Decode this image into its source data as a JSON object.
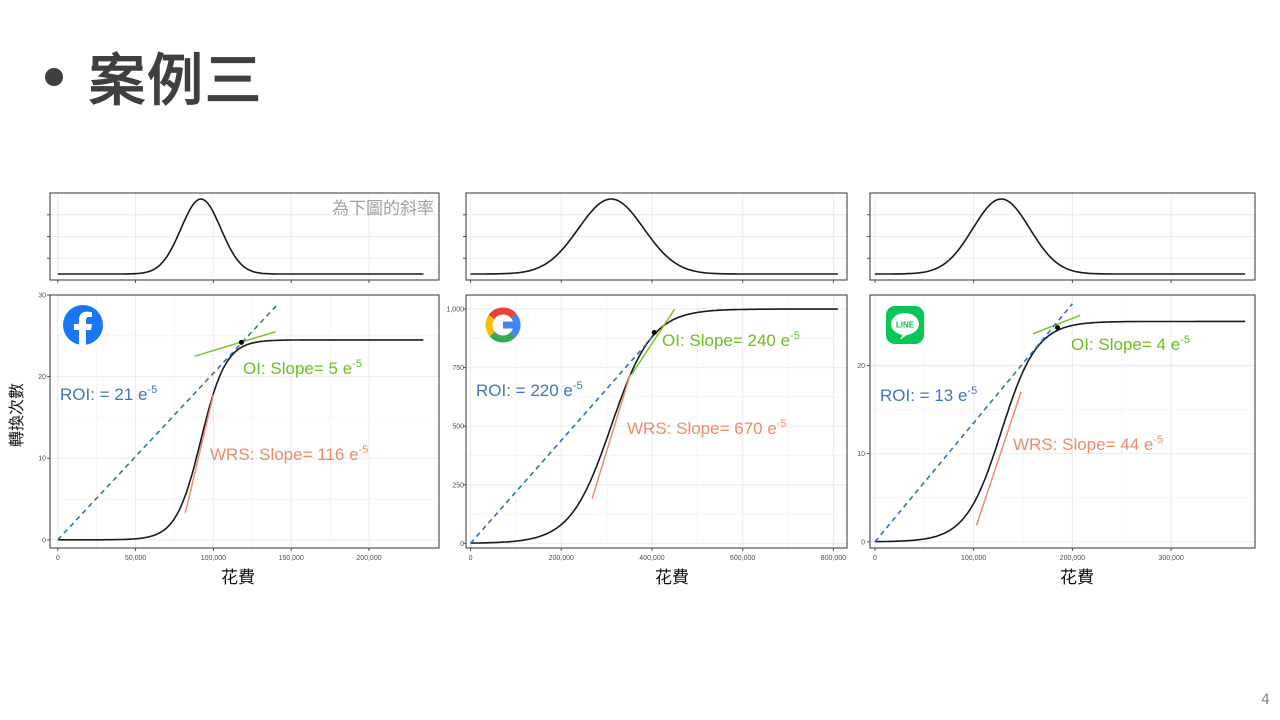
{
  "slide": {
    "title": "案例三",
    "page_number": "4"
  },
  "colors": {
    "curve": "#1a1a1a",
    "roi_line": "#2e75b6",
    "ol_line": "#7cc623",
    "wrs_line": "#f08a6c",
    "roi_text": "#4472c4",
    "ol_text": "#6abf1c",
    "wrs_text": "#f08a6c",
    "grid": "#ebebeb",
    "panel_border": "#333333",
    "facebook": "#1877f2",
    "line_app": "#06c755"
  },
  "chart_data": [
    {
      "type": "line",
      "platform_icon": "facebook-icon",
      "slope_panel_note": "為下圖的斜率",
      "xlabel": "花費",
      "ylabel": "轉換次數",
      "xlim": [
        -5000,
        245000
      ],
      "ylim": [
        -1,
        30
      ],
      "x_ticks": [
        0,
        50000,
        100000,
        150000,
        200000
      ],
      "x_tick_labels": [
        "0",
        "50,000",
        "100,000",
        "150,000",
        "200,000"
      ],
      "y_ticks": [
        0,
        10,
        20,
        30
      ],
      "y_tick_labels": [
        "0",
        "10",
        "20",
        "30"
      ],
      "curve": {
        "max": 24.5,
        "mid": 92000,
        "sigma": 8000,
        "x_start": 0,
        "x_end": 235000
      },
      "roi_line": {
        "from": [
          0,
          0
        ],
        "to": [
          142000,
          29
        ]
      },
      "ol_tangent": {
        "point": [
          118000,
          24.2
        ],
        "from": [
          88000,
          22.5
        ],
        "to": [
          140000,
          25.5
        ]
      },
      "wrs_tangent": {
        "from": [
          82000,
          3.3
        ],
        "to": [
          100000,
          17.8
        ]
      },
      "annotations": {
        "roi": {
          "label": "ROI: = 21 e",
          "exp": "-5"
        },
        "ol": {
          "label": "OI: Slope= 5 e",
          "exp": "-5"
        },
        "wrs": {
          "label": "WRS: Slope= 116 e",
          "exp": "-5"
        }
      }
    },
    {
      "type": "line",
      "platform_icon": "google-icon",
      "xlabel": "花費",
      "ylabel": "",
      "xlim": [
        -10000,
        830000
      ],
      "ylim": [
        -20,
        1060
      ],
      "x_ticks": [
        0,
        200000,
        400000,
        600000,
        800000
      ],
      "x_tick_labels": [
        "0",
        "200,000",
        "400,000",
        "600,000",
        "800,000"
      ],
      "y_ticks": [
        0,
        250,
        500,
        750,
        1000
      ],
      "y_tick_labels": [
        "0",
        "250",
        "500",
        "750",
        "1,000"
      ],
      "curve": {
        "max": 1000,
        "mid": 310000,
        "sigma": 45000,
        "x_start": 0,
        "x_end": 810000
      },
      "roi_line": {
        "from": [
          0,
          0
        ],
        "to": [
          410000,
          900
        ]
      },
      "ol_tangent": {
        "point": [
          405000,
          900
        ],
        "from": [
          355000,
          720
        ],
        "to": [
          450000,
          1000
        ]
      },
      "wrs_tangent": {
        "from": [
          268000,
          190
        ],
        "to": [
          352000,
          720
        ]
      },
      "annotations": {
        "roi": {
          "label": "ROI: = 220 e",
          "exp": "-5"
        },
        "ol": {
          "label": "OI: Slope= 240 e",
          "exp": "-5"
        },
        "wrs": {
          "label": "WRS: Slope= 670 e",
          "exp": "-5"
        }
      }
    },
    {
      "type": "line",
      "platform_icon": "line-app-icon",
      "platform_icon_text": "LINE",
      "xlabel": "花費",
      "ylabel": "",
      "xlim": [
        -5000,
        385000
      ],
      "ylim": [
        -0.7,
        28
      ],
      "x_ticks": [
        0,
        100000,
        200000,
        300000
      ],
      "x_tick_labels": [
        "0",
        "100,000",
        "200,000",
        "300,000"
      ],
      "y_ticks": [
        0,
        10,
        20
      ],
      "y_tick_labels": [
        "0",
        "10",
        "20"
      ],
      "curve": {
        "max": 25,
        "mid": 128000,
        "sigma": 18000,
        "x_start": 0,
        "x_end": 375000
      },
      "roi_line": {
        "from": [
          0,
          0
        ],
        "to": [
          200000,
          27
        ]
      },
      "ol_tangent": {
        "point": [
          185000,
          24.3
        ],
        "from": [
          160000,
          23.6
        ],
        "to": [
          208000,
          25.7
        ]
      },
      "wrs_tangent": {
        "from": [
          103000,
          1.9
        ],
        "to": [
          148000,
          17
        ]
      },
      "annotations": {
        "roi": {
          "label": "ROI: = 13 e",
          "exp": "-5"
        },
        "ol": {
          "label": "OI: Slope= 4 e",
          "exp": "-5"
        },
        "wrs": {
          "label": "WRS: Slope= 44 e",
          "exp": "-5"
        }
      }
    }
  ]
}
